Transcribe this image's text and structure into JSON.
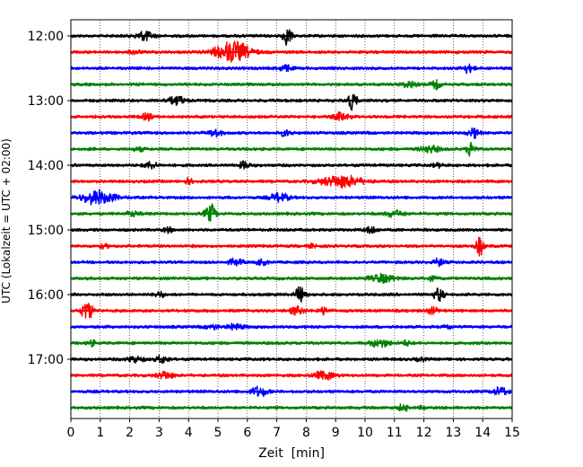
{
  "chart_data": {
    "type": "line",
    "title": "",
    "xlabel": "Zeit  [min]",
    "ylabel": "UTC (Lokalzeit = UTC + 02:00)",
    "xlim": [
      0,
      15
    ],
    "x_ticks": [
      "0",
      "1",
      "2",
      "3",
      "4",
      "5",
      "6",
      "7",
      "8",
      "9",
      "10",
      "11",
      "12",
      "13",
      "14",
      "15"
    ],
    "y_ticks": [
      "12:00",
      "13:00",
      "14:00",
      "15:00",
      "16:00",
      "17:00"
    ],
    "grid": "vertical dotted at each minute",
    "line_minutes": 15,
    "line_colors": [
      "#000000",
      "#ff0000",
      "#0000ff",
      "#008000"
    ],
    "traces": [
      {
        "start": "12:00",
        "color": "#000000",
        "events": [
          {
            "t": 2.5,
            "amp": 0.45,
            "dur": 0.6
          },
          {
            "t": 7.35,
            "amp": 0.8,
            "dur": 0.35
          }
        ]
      },
      {
        "start": "12:15",
        "color": "#ff0000",
        "events": [
          {
            "t": 5.5,
            "amp": 0.95,
            "dur": 1.3
          },
          {
            "t": 2.2,
            "amp": 0.15,
            "dur": 0.5
          }
        ]
      },
      {
        "start": "12:30",
        "color": "#0000ff",
        "events": [
          {
            "t": 7.3,
            "amp": 0.3,
            "dur": 0.5
          },
          {
            "t": 13.5,
            "amp": 0.4,
            "dur": 0.4
          }
        ]
      },
      {
        "start": "12:45",
        "color": "#008000",
        "events": [
          {
            "t": 11.5,
            "amp": 0.25,
            "dur": 0.6
          },
          {
            "t": 12.4,
            "amp": 0.35,
            "dur": 0.4
          }
        ]
      },
      {
        "start": "13:00",
        "color": "#000000",
        "events": [
          {
            "t": 3.6,
            "amp": 0.35,
            "dur": 0.7
          },
          {
            "t": 9.55,
            "amp": 0.85,
            "dur": 0.35
          }
        ]
      },
      {
        "start": "13:15",
        "color": "#ff0000",
        "events": [
          {
            "t": 2.6,
            "amp": 0.3,
            "dur": 0.4
          },
          {
            "t": 9.2,
            "amp": 0.35,
            "dur": 0.6
          }
        ]
      },
      {
        "start": "13:30",
        "color": "#0000ff",
        "events": [
          {
            "t": 4.9,
            "amp": 0.3,
            "dur": 0.5
          },
          {
            "t": 7.3,
            "amp": 0.3,
            "dur": 0.4
          },
          {
            "t": 13.7,
            "amp": 0.4,
            "dur": 0.4
          }
        ]
      },
      {
        "start": "13:45",
        "color": "#008000",
        "events": [
          {
            "t": 2.3,
            "amp": 0.15,
            "dur": 0.5
          },
          {
            "t": 12.2,
            "amp": 0.3,
            "dur": 0.7
          },
          {
            "t": 13.6,
            "amp": 0.7,
            "dur": 0.3
          }
        ]
      },
      {
        "start": "14:00",
        "color": "#000000",
        "events": [
          {
            "t": 2.7,
            "amp": 0.3,
            "dur": 0.5
          },
          {
            "t": 5.9,
            "amp": 0.3,
            "dur": 0.4
          },
          {
            "t": 12.5,
            "amp": 0.15,
            "dur": 0.4
          }
        ]
      },
      {
        "start": "14:15",
        "color": "#ff0000",
        "events": [
          {
            "t": 4.0,
            "amp": 0.25,
            "dur": 0.3
          },
          {
            "t": 9.2,
            "amp": 0.55,
            "dur": 1.5
          }
        ]
      },
      {
        "start": "14:30",
        "color": "#0000ff",
        "events": [
          {
            "t": 0.9,
            "amp": 0.65,
            "dur": 1.2
          },
          {
            "t": 7.1,
            "amp": 0.4,
            "dur": 0.7
          }
        ]
      },
      {
        "start": "14:45",
        "color": "#008000",
        "events": [
          {
            "t": 2.1,
            "amp": 0.2,
            "dur": 0.5
          },
          {
            "t": 4.75,
            "amp": 0.85,
            "dur": 0.4
          },
          {
            "t": 11.0,
            "amp": 0.3,
            "dur": 0.7
          }
        ]
      },
      {
        "start": "15:00",
        "color": "#000000",
        "events": [
          {
            "t": 3.3,
            "amp": 0.3,
            "dur": 0.3
          },
          {
            "t": 10.2,
            "amp": 0.3,
            "dur": 0.5
          }
        ]
      },
      {
        "start": "15:15",
        "color": "#ff0000",
        "events": [
          {
            "t": 1.1,
            "amp": 0.15,
            "dur": 0.4
          },
          {
            "t": 8.2,
            "amp": 0.15,
            "dur": 0.4
          },
          {
            "t": 13.9,
            "amp": 0.85,
            "dur": 0.3
          }
        ]
      },
      {
        "start": "15:30",
        "color": "#0000ff",
        "events": [
          {
            "t": 5.6,
            "amp": 0.3,
            "dur": 0.5
          },
          {
            "t": 6.5,
            "amp": 0.25,
            "dur": 0.4
          },
          {
            "t": 12.5,
            "amp": 0.3,
            "dur": 0.4
          }
        ]
      },
      {
        "start": "15:45",
        "color": "#008000",
        "events": [
          {
            "t": 10.6,
            "amp": 0.35,
            "dur": 1.0
          },
          {
            "t": 12.3,
            "amp": 0.2,
            "dur": 0.4
          }
        ]
      },
      {
        "start": "16:00",
        "color": "#000000",
        "events": [
          {
            "t": 3.0,
            "amp": 0.25,
            "dur": 0.4
          },
          {
            "t": 7.8,
            "amp": 0.75,
            "dur": 0.35
          },
          {
            "t": 12.5,
            "amp": 0.65,
            "dur": 0.35
          }
        ]
      },
      {
        "start": "16:15",
        "color": "#ff0000",
        "events": [
          {
            "t": 0.55,
            "amp": 0.95,
            "dur": 0.4
          },
          {
            "t": 7.7,
            "amp": 0.35,
            "dur": 0.5
          },
          {
            "t": 8.6,
            "amp": 0.3,
            "dur": 0.4
          },
          {
            "t": 12.3,
            "amp": 0.25,
            "dur": 0.5
          }
        ]
      },
      {
        "start": "16:30",
        "color": "#0000ff",
        "events": [
          {
            "t": 4.8,
            "amp": 0.2,
            "dur": 0.5
          },
          {
            "t": 5.6,
            "amp": 0.25,
            "dur": 0.6
          },
          {
            "t": 12.8,
            "amp": 0.15,
            "dur": 0.4
          }
        ]
      },
      {
        "start": "16:45",
        "color": "#008000",
        "events": [
          {
            "t": 0.7,
            "amp": 0.25,
            "dur": 0.3
          },
          {
            "t": 10.5,
            "amp": 0.35,
            "dur": 0.7
          },
          {
            "t": 11.4,
            "amp": 0.2,
            "dur": 0.4
          }
        ]
      },
      {
        "start": "17:00",
        "color": "#000000",
        "events": [
          {
            "t": 2.2,
            "amp": 0.3,
            "dur": 0.6
          },
          {
            "t": 3.1,
            "amp": 0.35,
            "dur": 0.5
          },
          {
            "t": 11.9,
            "amp": 0.15,
            "dur": 0.4
          }
        ]
      },
      {
        "start": "17:15",
        "color": "#ff0000",
        "events": [
          {
            "t": 3.2,
            "amp": 0.35,
            "dur": 0.6
          },
          {
            "t": 8.6,
            "amp": 0.35,
            "dur": 0.8
          }
        ]
      },
      {
        "start": "17:30",
        "color": "#0000ff",
        "events": [
          {
            "t": 6.4,
            "amp": 0.45,
            "dur": 0.6
          },
          {
            "t": 14.6,
            "amp": 0.4,
            "dur": 0.5
          }
        ]
      },
      {
        "start": "17:45",
        "color": "#008000",
        "events": [
          {
            "t": 11.3,
            "amp": 0.3,
            "dur": 0.4
          },
          {
            "t": 12.0,
            "amp": 0.15,
            "dur": 0.3
          }
        ]
      }
    ]
  }
}
